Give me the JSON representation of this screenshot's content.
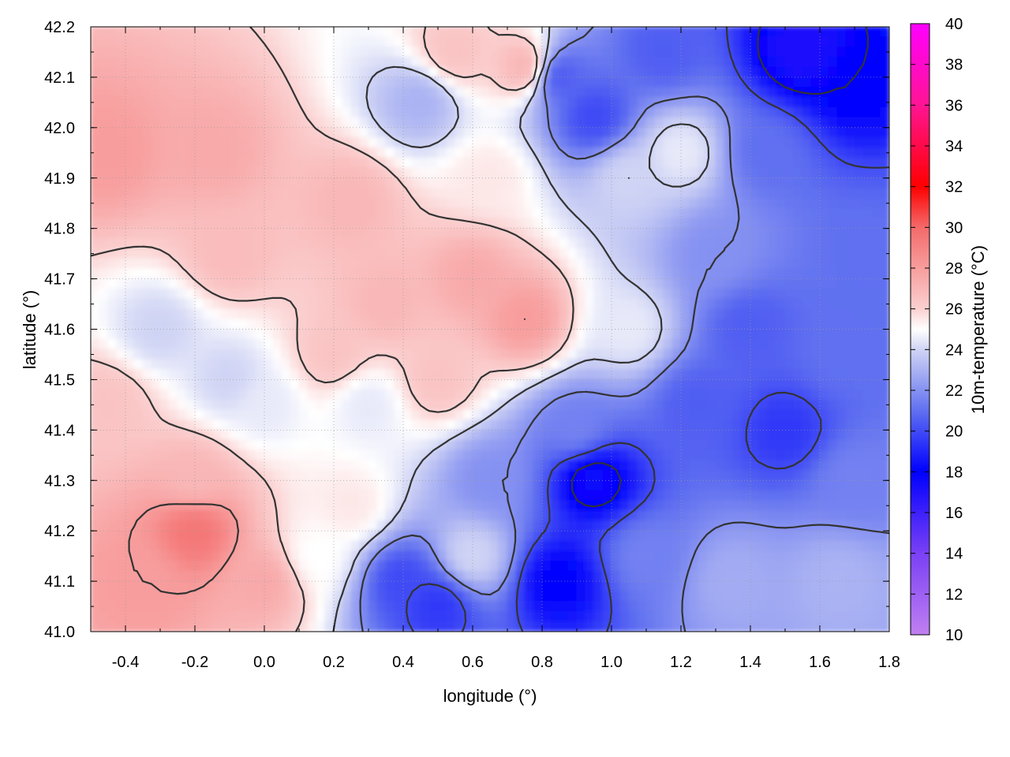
{
  "chart_data": {
    "type": "heatmap",
    "xlabel": "longitude (°)",
    "ylabel": "latitude (°)",
    "colorbar_label": "10m-temperature (°C)",
    "xlim": [
      -0.5,
      1.8
    ],
    "ylim": [
      41.0,
      42.2
    ],
    "x_ticks": [
      -0.4,
      -0.2,
      0.0,
      0.2,
      0.4,
      0.6,
      0.8,
      1.0,
      1.2,
      1.4,
      1.6,
      1.8
    ],
    "x_tick_labels": [
      "-0.4",
      "-0.2",
      "0.0",
      "0.2",
      "0.4",
      "0.6",
      "0.8",
      "1.0",
      "1.2",
      "1.4",
      "1.6",
      "1.8"
    ],
    "y_ticks": [
      41.0,
      41.1,
      41.2,
      41.3,
      41.4,
      41.5,
      41.6,
      41.7,
      41.8,
      41.9,
      42.0,
      42.1,
      42.2
    ],
    "y_tick_labels": [
      "41.0",
      "41.1",
      "41.2",
      "41.3",
      "41.4",
      "41.5",
      "41.6",
      "41.7",
      "41.8",
      "41.9",
      "42.0",
      "42.1",
      "42.2"
    ],
    "colorbar": {
      "range": [
        10,
        40
      ],
      "ticks": [
        10,
        12,
        14,
        16,
        18,
        20,
        22,
        24,
        26,
        28,
        30,
        32,
        34,
        36,
        38,
        40
      ],
      "tick_labels": [
        "10",
        "12",
        "14",
        "16",
        "18",
        "20",
        "22",
        "24",
        "26",
        "28",
        "30",
        "32",
        "34",
        "36",
        "38",
        "40"
      ],
      "stops": [
        {
          "value": 10,
          "color": "#c080f0"
        },
        {
          "value": 14,
          "color": "#7a40f5"
        },
        {
          "value": 18,
          "color": "#0000ff"
        },
        {
          "value": 21,
          "color": "#6070f0"
        },
        {
          "value": 24,
          "color": "#d0d4f4"
        },
        {
          "value": 25,
          "color": "#ffffff"
        },
        {
          "value": 26,
          "color": "#fbd0d0"
        },
        {
          "value": 30,
          "color": "#f46a6a"
        },
        {
          "value": 32,
          "color": "#ff0000"
        },
        {
          "value": 36,
          "color": "#ff1493"
        },
        {
          "value": 40,
          "color": "#ff00ff"
        }
      ]
    },
    "grid": true,
    "contours": true,
    "field_samples": [
      {
        "x": -0.45,
        "y": 41.95,
        "t": 28.0
      },
      {
        "x": -0.15,
        "y": 41.95,
        "t": 27.5
      },
      {
        "x": 0.25,
        "y": 41.85,
        "t": 27.0
      },
      {
        "x": 0.55,
        "y": 42.15,
        "t": 26.5
      },
      {
        "x": 0.65,
        "y": 41.9,
        "t": 25.5
      },
      {
        "x": 0.45,
        "y": 42.05,
        "t": 23.0
      },
      {
        "x": 0.75,
        "y": 42.12,
        "t": 27.0
      },
      {
        "x": 0.85,
        "y": 42.1,
        "t": 20.5
      },
      {
        "x": 0.95,
        "y": 42.02,
        "t": 20.0
      },
      {
        "x": 1.15,
        "y": 42.15,
        "t": 20.5
      },
      {
        "x": 1.55,
        "y": 42.15,
        "t": 17.0
      },
      {
        "x": 1.7,
        "y": 42.08,
        "t": 18.0
      },
      {
        "x": 1.45,
        "y": 41.95,
        "t": 21.0
      },
      {
        "x": 1.2,
        "y": 41.95,
        "t": 24.5
      },
      {
        "x": 1.05,
        "y": 41.9,
        "t": 24.0
      },
      {
        "x": 0.6,
        "y": 41.7,
        "t": 27.5
      },
      {
        "x": 0.75,
        "y": 41.62,
        "t": 28.0
      },
      {
        "x": 0.35,
        "y": 41.65,
        "t": 27.0
      },
      {
        "x": -0.1,
        "y": 41.75,
        "t": 26.8
      },
      {
        "x": -0.3,
        "y": 41.6,
        "t": 24.0
      },
      {
        "x": -0.1,
        "y": 41.5,
        "t": 24.0
      },
      {
        "x": 0.0,
        "y": 41.45,
        "t": 24.5
      },
      {
        "x": 0.2,
        "y": 41.55,
        "t": 26.5
      },
      {
        "x": 0.3,
        "y": 41.45,
        "t": 24.5
      },
      {
        "x": 0.5,
        "y": 41.5,
        "t": 26.5
      },
      {
        "x": -0.45,
        "y": 41.45,
        "t": 26.5
      },
      {
        "x": -0.2,
        "y": 41.3,
        "t": 27.0
      },
      {
        "x": -0.2,
        "y": 41.2,
        "t": 29.5
      },
      {
        "x": -0.35,
        "y": 41.1,
        "t": 28.0
      },
      {
        "x": 0.0,
        "y": 41.1,
        "t": 27.5
      },
      {
        "x": 0.15,
        "y": 41.15,
        "t": 25.0
      },
      {
        "x": 0.25,
        "y": 41.25,
        "t": 25.5
      },
      {
        "x": 0.4,
        "y": 41.1,
        "t": 20.0
      },
      {
        "x": 0.5,
        "y": 41.05,
        "t": 19.5
      },
      {
        "x": 0.6,
        "y": 41.15,
        "t": 24.0
      },
      {
        "x": 0.65,
        "y": 41.3,
        "t": 22.0
      },
      {
        "x": 0.85,
        "y": 41.1,
        "t": 18.0
      },
      {
        "x": 0.95,
        "y": 41.3,
        "t": 17.5
      },
      {
        "x": 0.9,
        "y": 41.4,
        "t": 21.5
      },
      {
        "x": 1.1,
        "y": 41.15,
        "t": 21.5
      },
      {
        "x": 1.35,
        "y": 41.1,
        "t": 22.8
      },
      {
        "x": 1.65,
        "y": 41.1,
        "t": 23.0
      },
      {
        "x": 1.25,
        "y": 41.45,
        "t": 20.5
      },
      {
        "x": 1.4,
        "y": 41.6,
        "t": 20.5
      },
      {
        "x": 1.5,
        "y": 41.4,
        "t": 19.5
      },
      {
        "x": 1.65,
        "y": 41.55,
        "t": 21.0
      },
      {
        "x": 1.75,
        "y": 41.75,
        "t": 21.0
      },
      {
        "x": 1.3,
        "y": 41.75,
        "t": 22.0
      },
      {
        "x": 1.05,
        "y": 41.6,
        "t": 24.5
      },
      {
        "x": 1.7,
        "y": 41.3,
        "t": 21.5
      }
    ]
  }
}
